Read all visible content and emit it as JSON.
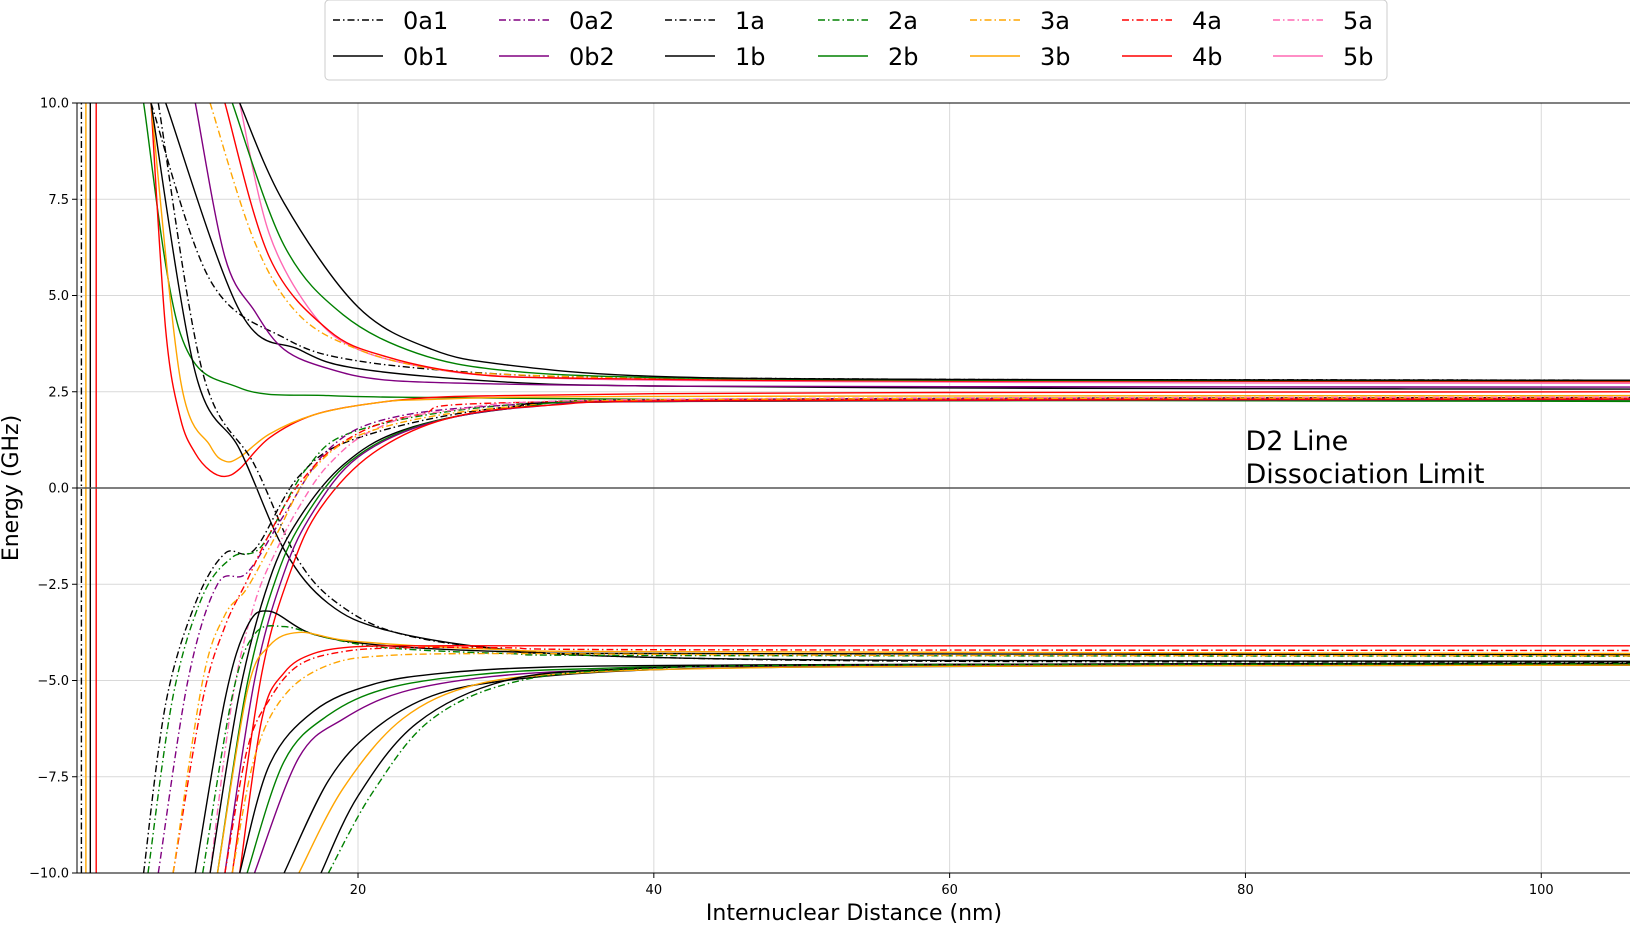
{
  "chart_data": {
    "type": "line",
    "xlabel": "Internuclear Distance (nm)",
    "ylabel": "Energy (GHz)",
    "xlim": [
      1,
      106
    ],
    "ylim": [
      -10,
      10
    ],
    "xticks": [
      20,
      40,
      60,
      80,
      100
    ],
    "xtick_labels": [
      "20",
      "40",
      "60",
      "80",
      "100"
    ],
    "yticks": [
      -10,
      -7.5,
      -5,
      -2.5,
      0,
      2.5,
      5,
      7.5,
      10
    ],
    "ytick_labels": [
      "−10.0",
      "−7.5",
      "−5.0",
      "−2.5",
      "0.0",
      "2.5",
      "5.0",
      "7.5",
      "10.0"
    ],
    "grid": true,
    "legend_position": "top-center",
    "reference_line": {
      "y": 0,
      "color": "#555555"
    },
    "annotation": {
      "lines": [
        "D2 Line",
        "Dissociation Limit"
      ],
      "x": 80,
      "y": 0.1
    },
    "legend": [
      {
        "label": "0a1",
        "color": "#000000",
        "style": "dashdot"
      },
      {
        "label": "0b1",
        "color": "#000000",
        "style": "solid"
      },
      {
        "label": "0a2",
        "color": "#800080",
        "style": "dashdot"
      },
      {
        "label": "0b2",
        "color": "#800080",
        "style": "solid"
      },
      {
        "label": "1a",
        "color": "#000000",
        "style": "dashdot"
      },
      {
        "label": "1b",
        "color": "#000000",
        "style": "solid"
      },
      {
        "label": "2a",
        "color": "#008000",
        "style": "dashdot"
      },
      {
        "label": "2b",
        "color": "#008000",
        "style": "solid"
      },
      {
        "label": "3a",
        "color": "#FFA500",
        "style": "dashdot"
      },
      {
        "label": "3b",
        "color": "#FFA500",
        "style": "solid"
      },
      {
        "label": "4a",
        "color": "#FF0000",
        "style": "dashdot"
      },
      {
        "label": "4b",
        "color": "#FF0000",
        "style": "solid"
      },
      {
        "label": "5a",
        "color": "#FF69B4",
        "style": "dashdot"
      },
      {
        "label": "5b",
        "color": "#FF69B4",
        "style": "solid"
      }
    ],
    "series": [
      {
        "color": "#000000",
        "style": "dashdot",
        "x": [
          6,
          10,
          15,
          20,
          30,
          40,
          60,
          80,
          106
        ],
        "y": [
          10,
          5.4,
          3.9,
          3.3,
          2.95,
          2.87,
          2.82,
          2.81,
          2.8
        ]
      },
      {
        "color": "#000000",
        "style": "solid",
        "x": [
          7,
          12,
          16,
          20,
          30,
          40,
          60,
          80,
          106
        ],
        "y": [
          10,
          4.6,
          3.6,
          3.1,
          2.75,
          2.65,
          2.6,
          2.58,
          2.57
        ]
      },
      {
        "color": "#008000",
        "style": "solid",
        "x": [
          5.5,
          8,
          12,
          18,
          25,
          40,
          60,
          106
        ],
        "y": [
          10,
          4.0,
          2.6,
          2.4,
          2.35,
          2.3,
          2.28,
          2.25
        ]
      },
      {
        "color": "#FF0000",
        "style": "solid",
        "x": [
          6,
          7,
          8,
          9,
          10,
          11,
          12,
          14,
          17,
          21,
          25,
          30,
          40,
          60,
          106
        ],
        "y": [
          10,
          4.1,
          1.8,
          0.9,
          0.45,
          0.3,
          0.5,
          1.3,
          1.9,
          2.2,
          2.35,
          2.4,
          2.45,
          2.48,
          2.5
        ]
      },
      {
        "color": "#FFA500",
        "style": "solid",
        "x": [
          6,
          8,
          10,
          11,
          12,
          14,
          17,
          21,
          25,
          40,
          106
        ],
        "y": [
          10,
          2.8,
          1.1,
          0.7,
          0.8,
          1.4,
          1.9,
          2.2,
          2.3,
          2.38,
          2.4
        ]
      },
      {
        "color": "#000000",
        "style": "solid",
        "x": [
          6,
          9,
          12,
          15,
          18,
          22,
          30,
          40,
          60,
          106
        ],
        "y": [
          10,
          3.0,
          1.0,
          -1.6,
          -3.0,
          -3.7,
          -4.2,
          -4.4,
          -4.48,
          -4.5
        ]
      },
      {
        "color": "#000000",
        "style": "dashdot",
        "x": [
          6.5,
          9.5,
          13,
          16,
          19,
          23,
          30,
          40,
          60,
          106
        ],
        "y": [
          10,
          3.0,
          0.6,
          -1.9,
          -3.1,
          -3.8,
          -4.2,
          -4.4,
          -4.5,
          -4.52
        ]
      },
      {
        "color": "#800080",
        "style": "solid",
        "x": [
          9,
          11,
          13,
          15,
          18,
          22,
          30,
          40,
          60,
          106
        ],
        "y": [
          10,
          6.0,
          4.6,
          3.6,
          3.1,
          2.8,
          2.7,
          2.65,
          2.63,
          2.62
        ]
      },
      {
        "color": "#FF69B4",
        "style": "solid",
        "x": [
          12,
          14,
          17,
          20,
          25,
          30,
          40,
          60,
          80,
          106
        ],
        "y": [
          10,
          6.6,
          4.5,
          3.6,
          3.1,
          2.9,
          2.8,
          2.75,
          2.73,
          2.72
        ]
      },
      {
        "color": "#FFA500",
        "style": "dashdot",
        "x": [
          10,
          13,
          16,
          20,
          25,
          30,
          40,
          60,
          106
        ],
        "y": [
          10,
          6.4,
          4.5,
          3.6,
          3.1,
          2.95,
          2.85,
          2.8,
          2.78
        ]
      },
      {
        "color": "#FF0000",
        "style": "solid",
        "x": [
          11,
          14,
          18,
          22,
          28,
          35,
          45,
          60,
          106
        ],
        "y": [
          10,
          6.0,
          4.1,
          3.4,
          2.95,
          2.85,
          2.8,
          2.78,
          2.76
        ]
      },
      {
        "color": "#008000",
        "style": "solid",
        "x": [
          11.5,
          15,
          19,
          24,
          30,
          40,
          60,
          106
        ],
        "y": [
          10,
          6.3,
          4.5,
          3.5,
          3.05,
          2.87,
          2.8,
          2.79
        ]
      },
      {
        "color": "#000000",
        "style": "solid",
        "x": [
          12,
          15,
          20,
          25,
          30,
          40,
          60,
          106
        ],
        "y": [
          10,
          7.4,
          4.7,
          3.6,
          3.2,
          2.9,
          2.82,
          2.8
        ]
      },
      {
        "color": "#000000",
        "style": "dashdot",
        "x": [
          5.5,
          7,
          9,
          11,
          13,
          16,
          20,
          30,
          45,
          106
        ],
        "y": [
          -10,
          -5.6,
          -3.0,
          -1.7,
          -1.6,
          0.3,
          1.3,
          2.1,
          2.3,
          2.35
        ]
      },
      {
        "color": "#008000",
        "style": "dashdot",
        "x": [
          5.8,
          7.5,
          9.5,
          11.5,
          13.5,
          16.5,
          20,
          30,
          45,
          106
        ],
        "y": [
          -10,
          -5.4,
          -2.8,
          -1.8,
          -1.5,
          0.5,
          1.5,
          2.15,
          2.3,
          2.32
        ]
      },
      {
        "color": "#800080",
        "style": "dashdot",
        "x": [
          6.5,
          8.5,
          10.5,
          12.5,
          15,
          18,
          22,
          30,
          45,
          106
        ],
        "y": [
          -10,
          -5.0,
          -2.5,
          -2.2,
          -0.7,
          1.0,
          1.8,
          2.15,
          2.3,
          2.33
        ]
      },
      {
        "color": "#FF0000",
        "style": "dashdot",
        "x": [
          7.5,
          9.5,
          11,
          12.5,
          14,
          16,
          19,
          24,
          35,
          106
        ],
        "y": [
          -10,
          -5.5,
          -3.6,
          -2.4,
          -1.2,
          0.1,
          1.2,
          1.9,
          2.25,
          2.34
        ]
      },
      {
        "color": "#FF69B4",
        "style": "dashdot",
        "x": [
          10,
          11.5,
          13,
          14.5,
          16,
          18,
          21,
          26,
          40,
          106
        ],
        "y": [
          -10,
          -5.5,
          -3.0,
          -1.6,
          -0.5,
          0.6,
          1.5,
          2.0,
          2.3,
          2.36
        ]
      },
      {
        "color": "#FFA500",
        "style": "dashdot",
        "x": [
          7.5,
          9.5,
          11,
          12.5,
          14.5,
          17,
          21,
          30,
          45,
          106
        ],
        "y": [
          -10,
          -5.0,
          -3.3,
          -2.6,
          -1.2,
          0.5,
          1.5,
          2.1,
          2.3,
          2.33
        ]
      },
      {
        "color": "#000000",
        "style": "solid",
        "x": [
          10,
          12,
          14,
          16,
          19,
          23,
          30,
          40,
          106
        ],
        "y": [
          -10,
          -5.3,
          -2.4,
          -0.8,
          0.6,
          1.5,
          2.05,
          2.25,
          2.3
        ]
      },
      {
        "color": "#008000",
        "style": "solid",
        "x": [
          10.5,
          12.5,
          14.5,
          16.5,
          19.5,
          24,
          31,
          42,
          106
        ],
        "y": [
          -10,
          -5.1,
          -2.3,
          -0.7,
          0.7,
          1.6,
          2.1,
          2.25,
          2.28
        ]
      },
      {
        "color": "#800080",
        "style": "solid",
        "x": [
          11,
          13,
          15,
          17,
          20,
          25,
          32,
          44,
          106
        ],
        "y": [
          -10,
          -5.0,
          -2.2,
          -0.6,
          0.8,
          1.7,
          2.12,
          2.26,
          2.3
        ]
      },
      {
        "color": "#FF0000",
        "style": "solid",
        "x": [
          11.5,
          13.5,
          15.5,
          17.5,
          21,
          26,
          33,
          45,
          106
        ],
        "y": [
          -10,
          -4.8,
          -2.1,
          -0.5,
          0.9,
          1.8,
          2.15,
          2.27,
          2.31
        ]
      },
      {
        "color": "#000000",
        "style": "solid",
        "x": [
          9,
          11,
          12.5,
          14,
          17,
          22,
          30,
          40,
          106
        ],
        "y": [
          -10,
          -5.5,
          -3.6,
          -3.2,
          -3.8,
          -4.1,
          -4.25,
          -4.3,
          -4.33
        ]
      },
      {
        "color": "#008000",
        "style": "dashdot",
        "x": [
          9.5,
          11.5,
          13,
          15,
          18,
          22,
          30,
          40,
          106
        ],
        "y": [
          -10,
          -5.4,
          -3.8,
          -3.6,
          -3.9,
          -4.15,
          -4.3,
          -4.35,
          -4.37
        ]
      },
      {
        "color": "#FFA500",
        "style": "solid",
        "x": [
          10.5,
          12.5,
          14,
          16,
          19,
          24,
          30,
          40,
          106
        ],
        "y": [
          -10,
          -5.3,
          -4.1,
          -3.75,
          -3.95,
          -4.1,
          -4.2,
          -4.25,
          -4.3
        ]
      },
      {
        "color": "#FF0000",
        "style": "solid",
        "x": [
          12,
          13.5,
          15,
          17,
          20,
          25,
          30,
          40,
          106
        ],
        "y": [
          -10,
          -6.0,
          -4.8,
          -4.3,
          -4.12,
          -4.1,
          -4.1,
          -4.1,
          -4.1
        ]
      },
      {
        "color": "#FF0000",
        "style": "dashdot",
        "x": [
          11,
          12.5,
          14,
          16,
          19,
          23,
          30,
          40,
          106
        ],
        "y": [
          -10,
          -6.8,
          -5.5,
          -4.6,
          -4.25,
          -4.15,
          -4.15,
          -4.2,
          -4.22
        ]
      },
      {
        "color": "#FFA500",
        "style": "dashdot",
        "x": [
          11.5,
          13,
          15,
          18,
          22,
          30,
          40,
          60,
          106
        ],
        "y": [
          -10,
          -7.0,
          -5.4,
          -4.6,
          -4.35,
          -4.3,
          -4.32,
          -4.35,
          -4.36
        ]
      },
      {
        "color": "#000000",
        "style": "solid",
        "x": [
          12,
          14,
          17,
          21,
          26,
          33,
          45,
          60,
          106
        ],
        "y": [
          -10,
          -7.2,
          -5.8,
          -5.1,
          -4.8,
          -4.65,
          -4.6,
          -4.58,
          -4.57
        ]
      },
      {
        "color": "#008000",
        "style": "solid",
        "x": [
          12.5,
          15,
          18,
          22,
          28,
          35,
          50,
          106
        ],
        "y": [
          -10,
          -7.1,
          -5.9,
          -5.2,
          -4.85,
          -4.7,
          -4.62,
          -4.6
        ]
      },
      {
        "color": "#800080",
        "style": "solid",
        "x": [
          13,
          16,
          19,
          23,
          29,
          37,
          50,
          106
        ],
        "y": [
          -10,
          -7.0,
          -6.0,
          -5.3,
          -4.9,
          -4.72,
          -4.62,
          -4.6
        ]
      },
      {
        "color": "#000000",
        "style": "solid",
        "x": [
          15,
          18,
          21,
          25,
          30,
          38,
          50,
          70,
          106
        ],
        "y": [
          -10,
          -7.6,
          -6.3,
          -5.4,
          -5.0,
          -4.75,
          -4.65,
          -4.62,
          -4.6
        ]
      },
      {
        "color": "#FFA500",
        "style": "solid",
        "x": [
          16,
          19,
          23,
          28,
          35,
          45,
          60,
          106
        ],
        "y": [
          -10,
          -7.8,
          -6.0,
          -5.1,
          -4.8,
          -4.68,
          -4.63,
          -4.6
        ]
      },
      {
        "color": "#000000",
        "style": "solid",
        "x": [
          17.5,
          20,
          24,
          30,
          38,
          50,
          70,
          106
        ],
        "y": [
          -10,
          -8.0,
          -6.1,
          -5.0,
          -4.7,
          -4.6,
          -4.57,
          -4.55
        ]
      },
      {
        "color": "#008000",
        "style": "dashdot",
        "x": [
          18,
          21,
          25,
          31,
          40,
          55,
          106
        ],
        "y": [
          -10,
          -7.9,
          -6.0,
          -5.0,
          -4.68,
          -4.6,
          -4.57
        ]
      },
      {
        "color": "#000000",
        "style": "dashdot",
        "x": [
          1.3,
          1.3
        ],
        "y": [
          -10,
          10
        ]
      },
      {
        "color": "#FFA500",
        "style": "solid",
        "x": [
          1.6,
          1.6
        ],
        "y": [
          -10,
          10
        ]
      },
      {
        "color": "#000000",
        "style": "solid",
        "x": [
          1.9,
          1.9
        ],
        "y": [
          -10,
          10
        ]
      },
      {
        "color": "#FF0000",
        "style": "solid",
        "x": [
          2.3,
          2.3
        ],
        "y": [
          -10,
          10
        ]
      }
    ]
  }
}
